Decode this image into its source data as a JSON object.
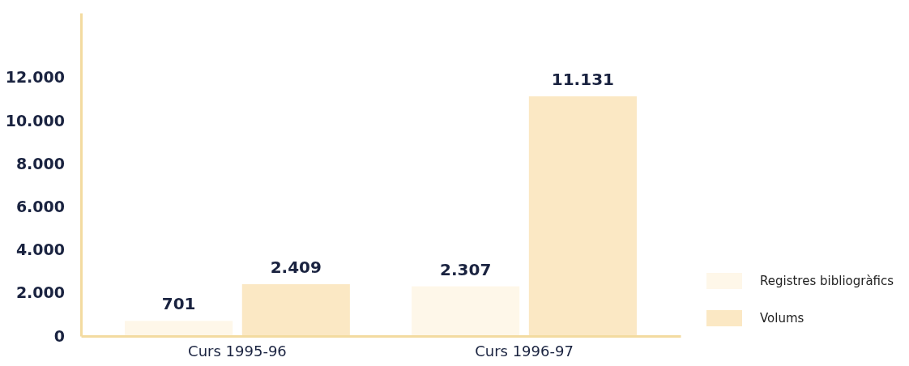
{
  "chart_data": {
    "type": "bar",
    "categories": [
      "Curs 1995-96",
      "Curs 1996-97"
    ],
    "series": [
      {
        "name": "Registres bibliogràfics",
        "color": "#fef7e9",
        "values": [
          701,
          2307
        ],
        "value_labels": [
          "701",
          "2.307"
        ]
      },
      {
        "name": "Volums",
        "color": "#fbe8c4",
        "values": [
          2409,
          11131
        ],
        "value_labels": [
          "2.409",
          "11.131"
        ]
      }
    ],
    "ylim": [
      0,
      15000
    ],
    "yticks": [
      {
        "value": 0,
        "label": "0"
      },
      {
        "value": 2000,
        "label": "2.000"
      },
      {
        "value": 4000,
        "label": "4.000"
      },
      {
        "value": 6000,
        "label": "6.000"
      },
      {
        "value": 8000,
        "label": "8.000"
      },
      {
        "value": 10000,
        "label": "10.000"
      },
      {
        "value": 12000,
        "label": "12.000"
      }
    ],
    "legend": "right",
    "grid": false
  }
}
